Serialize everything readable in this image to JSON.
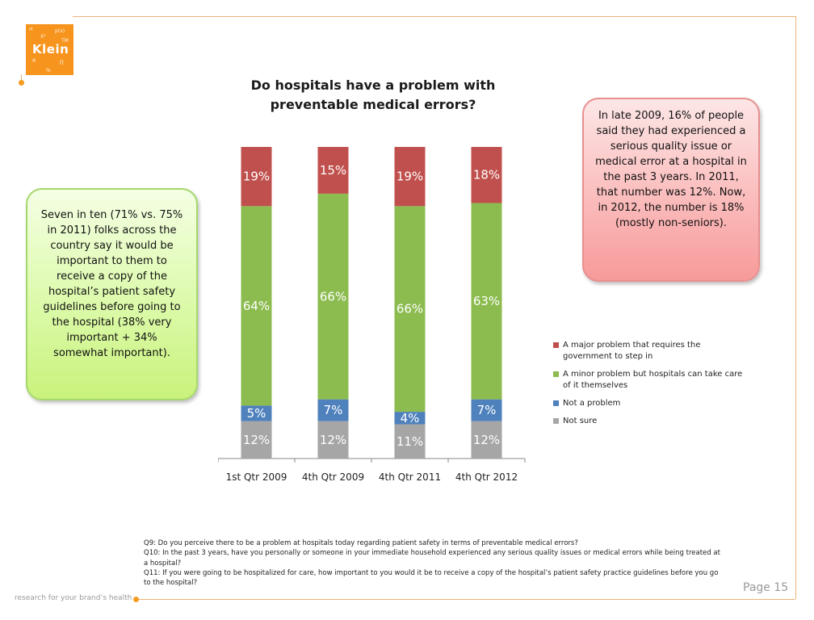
{
  "logo": {
    "word": "Klein"
  },
  "title_line1": "Do hospitals have a problem with",
  "title_line2": "preventable medical errors?",
  "callout_left": "Seven in ten (71% vs. 75% in 2011) folks across the country say it would be important to them to receive a copy of the hospital’s patient safety guidelines before going to the hospital (38% very important + 34% somewhat important).",
  "callout_right": "In late 2009, 16% of people said they had experienced  a serious quality issue or medical error at a hospital in the past 3 years.  In 2011, that number was 12%.  Now, in 2012, the number is 18% (mostly non-seniors).",
  "chart_data": {
    "type": "bar",
    "stacked": true,
    "categories": [
      "1st Qtr 2009",
      "4th Qtr 2009",
      "4th Qtr 2011",
      "4th Qtr 2012"
    ],
    "series": [
      {
        "name": "Not sure",
        "color": "#a6a6a6",
        "values": [
          12,
          12,
          11,
          12
        ],
        "labels": [
          "12%",
          "12%",
          "11%",
          "12%"
        ]
      },
      {
        "name": "Not a problem",
        "color": "#4f81bd",
        "values": [
          5,
          7,
          4,
          7
        ],
        "labels": [
          "5%",
          "7%",
          "4%",
          "7%"
        ]
      },
      {
        "name": "A minor problem but hospitals can take care of it themselves",
        "color": "#8cbc4f",
        "values": [
          64,
          66,
          66,
          63
        ],
        "labels": [
          "64%",
          "66%",
          "66%",
          "63%"
        ]
      },
      {
        "name": "A major problem that requires the government to step in",
        "color": "#c0504d",
        "values": [
          19,
          15,
          19,
          18
        ],
        "labels": [
          "19%",
          "15%",
          "19%",
          "18%"
        ]
      }
    ],
    "legend_order": [
      3,
      2,
      1,
      0
    ],
    "legend_position": "right",
    "ylim": [
      0,
      100
    ],
    "grid": false,
    "title": "Do hospitals have a problem with preventable medical errors?"
  },
  "footnotes": [
    "Q9: Do you perceive there to be a problem at hospitals today regarding patient safety in terms of preventable medical errors?",
    "Q10: In the past 3 years, have you personally or someone in your immediate household experienced any serious quality issues or medical errors while being treated at a hospital?",
    "Q11: If you were going to be hospitalized for care, how important to you would it be to receive a copy of the hospital’s patient safety practice guidelines before you go to the hospital?"
  ],
  "page_number": "Page 15",
  "tagline": "research for your brand’s health"
}
